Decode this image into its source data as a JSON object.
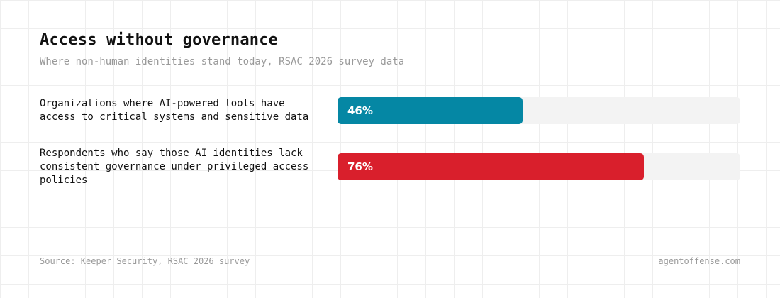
{
  "title": "Access without governance",
  "subtitle": "Where non-human identities stand today, RSAC 2026 survey data",
  "colors": {
    "bar_1": "#0587a4",
    "bar_2": "#d91f2c",
    "track": "#f3f3f3"
  },
  "chart_data": {
    "type": "bar",
    "orientation": "horizontal",
    "xlim": [
      0,
      100
    ],
    "unit": "%",
    "grid": false,
    "categories": [
      "Organizations where AI-powered tools have access to critical systems and sensitive data",
      "Respondents who say those AI identities lack consistent governance under privileged access policies"
    ],
    "values": [
      46,
      76
    ],
    "value_labels": [
      "46%",
      "76%"
    ]
  },
  "footer": {
    "source": "Source: Keeper Security, RSAC 2026 survey",
    "site": "agentoffense.com"
  }
}
